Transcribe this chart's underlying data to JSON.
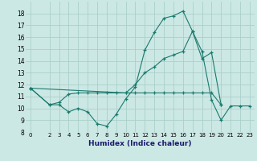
{
  "xlabel": "Humidex (Indice chaleur)",
  "bg_color": "#cce8e4",
  "grid_color": "#aacfcb",
  "line_color": "#1a7a6e",
  "xlim": [
    -0.5,
    23.5
  ],
  "ylim": [
    8,
    19
  ],
  "xticks": [
    0,
    2,
    3,
    4,
    5,
    6,
    7,
    8,
    9,
    10,
    11,
    12,
    13,
    14,
    15,
    16,
    17,
    18,
    19,
    20,
    21,
    22,
    23
  ],
  "yticks": [
    8,
    9,
    10,
    11,
    12,
    13,
    14,
    15,
    16,
    17,
    18
  ],
  "line1_x": [
    0,
    2,
    3,
    4,
    5,
    6,
    7,
    8,
    9,
    10,
    11,
    12,
    13,
    14,
    15,
    16,
    17,
    18,
    19,
    20,
    21,
    22,
    23
  ],
  "line1_y": [
    11.7,
    10.3,
    10.3,
    9.7,
    10.0,
    9.7,
    8.7,
    8.5,
    9.5,
    10.8,
    11.8,
    14.9,
    16.4,
    17.6,
    17.8,
    18.2,
    16.5,
    14.8,
    10.7,
    9.0,
    10.2,
    10.2,
    10.2
  ],
  "line2_x": [
    0,
    2,
    3,
    4,
    5,
    6,
    7,
    8,
    9,
    10,
    11,
    12,
    13,
    14,
    15,
    16,
    17,
    18,
    19,
    20
  ],
  "line2_y": [
    11.7,
    10.3,
    10.5,
    11.2,
    11.3,
    11.3,
    11.3,
    11.3,
    11.3,
    11.3,
    11.3,
    11.3,
    11.3,
    11.3,
    11.3,
    11.3,
    11.3,
    11.3,
    11.3,
    10.3
  ],
  "line3_x": [
    0,
    10,
    11,
    12,
    13,
    14,
    15,
    16,
    17,
    18,
    19,
    20
  ],
  "line3_y": [
    11.7,
    11.3,
    12.0,
    13.0,
    13.5,
    14.2,
    14.5,
    14.8,
    16.5,
    14.2,
    14.7,
    10.3
  ]
}
